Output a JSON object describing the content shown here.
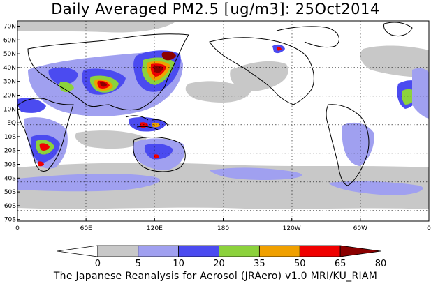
{
  "title": "Daily Averaged PM2.5 [ug/m3]: 25Oct2014",
  "footer": "The Japanese Reanalysis for Aerosol (JRAero) v1.0 MRI/KU_RIAM",
  "lat_labels": [
    "70N",
    "60N",
    "50N",
    "40N",
    "30N",
    "20N",
    "10N",
    "EQ",
    "10S",
    "20S",
    "30S",
    "40S",
    "50S",
    "60S",
    "70S"
  ],
  "lon_labels": [
    "0",
    "60E",
    "120E",
    "180",
    "120W",
    "60W",
    "0"
  ],
  "colorbar": {
    "thresholds": [
      "0",
      "5",
      "10",
      "20",
      "35",
      "50",
      "65",
      "80"
    ],
    "colors": [
      "#ffffff",
      "#c8c8c8",
      "#a0a0f0",
      "#4b4bf0",
      "#8cd23c",
      "#f0a000",
      "#f00000",
      "#8b0000"
    ]
  }
}
